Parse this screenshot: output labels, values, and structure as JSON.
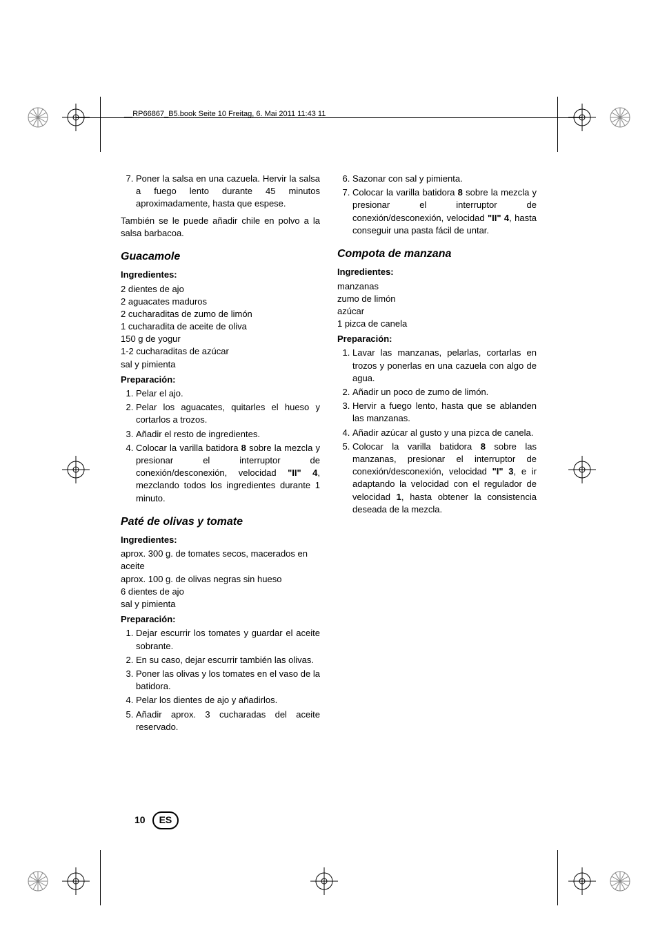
{
  "header": "__RP66867_B5.book  Seite 10  Freitag, 6. Mai 2011  11:43 11",
  "left": {
    "continued_list_start": 7,
    "continued_list": [
      "Poner la salsa en una cazuela. Hervir la salsa a fuego lento durante 45 minutos aproximadamente, hasta que espese."
    ],
    "para1": "También se le puede añadir chile en polvo a la salsa barbacoa.",
    "recipe1": {
      "title": "Guacamole",
      "ing_label": "Ingredientes:",
      "ing": [
        "2 dientes de ajo",
        "2 aguacates maduros",
        "2 cucharaditas de zumo de limón",
        "1 cucharadita de aceite de oliva",
        "150 g de yogur",
        "1-2 cucharaditas de azúcar",
        "sal y pimienta"
      ],
      "prep_label": "Preparación:",
      "steps": [
        "Pelar el ajo.",
        "Pelar los aguacates, quitarles el hueso y cortarlos a trozos.",
        "Añadir el resto de ingredientes.",
        [
          "Colocar la varilla batidora ",
          "8",
          " sobre la mezcla y presionar el interruptor de conexión/desconexión, velocidad ",
          "\"II\" 4",
          ", mezclando todos los ingredientes durante 1 minuto."
        ]
      ]
    },
    "recipe2": {
      "title": "Paté de olivas y tomate",
      "ing_label": "Ingredientes:",
      "ing": [
        "aprox. 300 g. de tomates secos, macerados en aceite",
        "aprox. 100 g. de olivas negras sin hueso",
        "6 dientes de ajo",
        "sal y pimienta"
      ],
      "prep_label": "Preparación:",
      "steps": [
        "Dejar escurrir los tomates y guardar el aceite sobrante.",
        "En su caso, dejar escurrir también las olivas.",
        "Poner las olivas y los tomates en el vaso de la batidora.",
        "Pelar los dientes de ajo y añadirlos.",
        "Añadir aprox. 3 cucharadas del aceite reservado."
      ]
    }
  },
  "right": {
    "continued_list_start": 6,
    "continued_list": [
      "Sazonar con sal y pimienta.",
      [
        "Colocar la varilla batidora ",
        "8",
        " sobre la mezcla y presionar el interruptor de conexión/desconexión, velocidad ",
        "\"II\" 4",
        ", hasta conseguir una pasta fácil de untar."
      ]
    ],
    "recipe3": {
      "title": "Compota de manzana",
      "ing_label": "Ingredientes:",
      "ing": [
        "manzanas",
        "zumo de limón",
        "azúcar",
        "1 pizca de canela"
      ],
      "prep_label": "Preparación:",
      "steps": [
        "Lavar las manzanas, pelarlas, cortarlas en trozos y ponerlas en una cazuela con algo de agua.",
        "Añadir un poco de zumo de limón.",
        "Hervir a fuego lento, hasta que se ablanden las manzanas.",
        "Añadir azúcar al gusto y una pizca de canela.",
        [
          "Colocar la varilla batidora ",
          "8",
          " sobre las manzanas, presionar el interruptor de conexión/desconexión, velocidad ",
          "\"I\" 3",
          ", e ir adaptando la velocidad con el regulador de velocidad ",
          "1",
          ", hasta obtener la consistencia deseada de la mezcla."
        ]
      ]
    }
  },
  "page": {
    "num": "10",
    "lang": "ES"
  }
}
